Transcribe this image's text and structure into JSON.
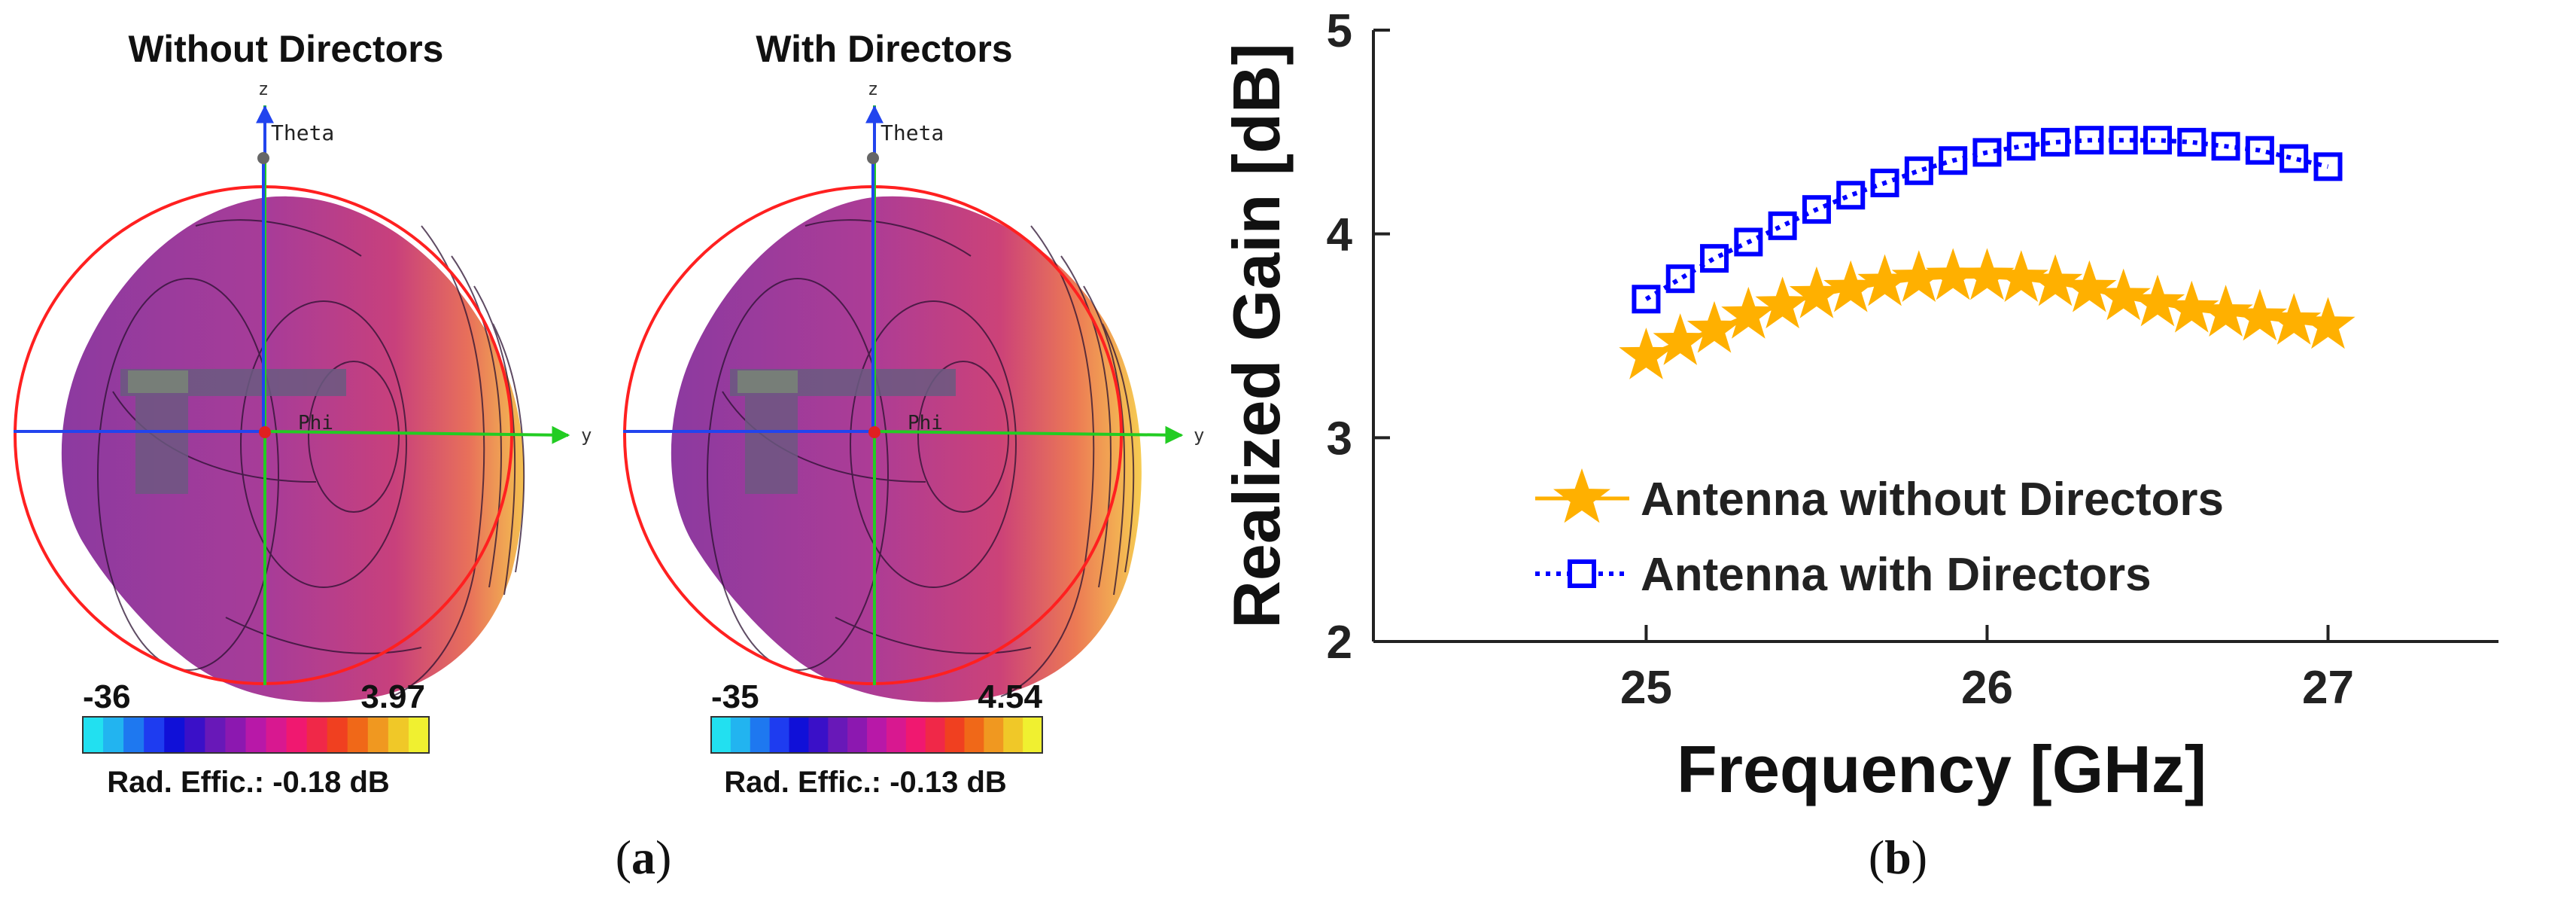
{
  "panel_a": {
    "label_open": "(",
    "label_letter": "a",
    "label_close": ")",
    "left": {
      "title": "Without Directors",
      "axis_z": "z",
      "axis_y": "y",
      "theta": "Theta",
      "phi": "Phi",
      "scale_min": "-36",
      "scale_max": "3.97",
      "efficiency": "Rad. Effic.: -0.18 dB"
    },
    "right": {
      "title": "With Directors",
      "axis_z": "z",
      "axis_y": "y",
      "theta": "Theta",
      "phi": "Phi",
      "scale_min": "-35",
      "scale_max": "4.54",
      "efficiency": "Rad. Effic.: -0.13 dB"
    },
    "colorbar_colors": [
      "#22e0f0",
      "#22b4f0",
      "#1e78f0",
      "#1e3cf0",
      "#1010d8",
      "#3a10c8",
      "#6818b8",
      "#8c18b0",
      "#b818a8",
      "#d81890",
      "#f01870",
      "#f02848",
      "#f04020",
      "#f06818",
      "#f09820",
      "#f0c828",
      "#f0f030"
    ]
  },
  "panel_b": {
    "label_open": "(",
    "label_letter": "b",
    "label_close": ")"
  },
  "colors": {
    "without": "#FFB000",
    "with": "#0000FF"
  },
  "chart_data": {
    "type": "line",
    "xlabel": "Frequency [GHz]",
    "ylabel": "Realized Gain [dB]",
    "xlim": [
      24.2,
      27.5
    ],
    "ylim": [
      2,
      5
    ],
    "xticks": [
      25,
      26,
      27
    ],
    "yticks": [
      2,
      3,
      4,
      5
    ],
    "x_tick_labels": [
      "25",
      "26",
      "27"
    ],
    "y_tick_labels": [
      "2",
      "3",
      "4",
      "5"
    ],
    "legend_position": "lower-left",
    "x": [
      25.0,
      25.1,
      25.2,
      25.3,
      25.4,
      25.5,
      25.6,
      25.7,
      25.8,
      25.9,
      26.0,
      26.1,
      26.2,
      26.3,
      26.4,
      26.5,
      26.6,
      26.7,
      26.8,
      26.9,
      27.0
    ],
    "series": [
      {
        "name": "Antenna without Directors",
        "marker": "star",
        "line": "solid",
        "values": [
          3.4,
          3.47,
          3.53,
          3.6,
          3.65,
          3.7,
          3.73,
          3.76,
          3.78,
          3.79,
          3.79,
          3.78,
          3.76,
          3.73,
          3.69,
          3.66,
          3.63,
          3.61,
          3.59,
          3.57,
          3.55
        ]
      },
      {
        "name": "Antenna with Directors",
        "marker": "square",
        "line": "dotted",
        "values": [
          3.68,
          3.78,
          3.88,
          3.96,
          4.04,
          4.12,
          4.19,
          4.25,
          4.31,
          4.36,
          4.4,
          4.43,
          4.45,
          4.46,
          4.46,
          4.46,
          4.45,
          4.43,
          4.41,
          4.37,
          4.33
        ]
      }
    ]
  }
}
